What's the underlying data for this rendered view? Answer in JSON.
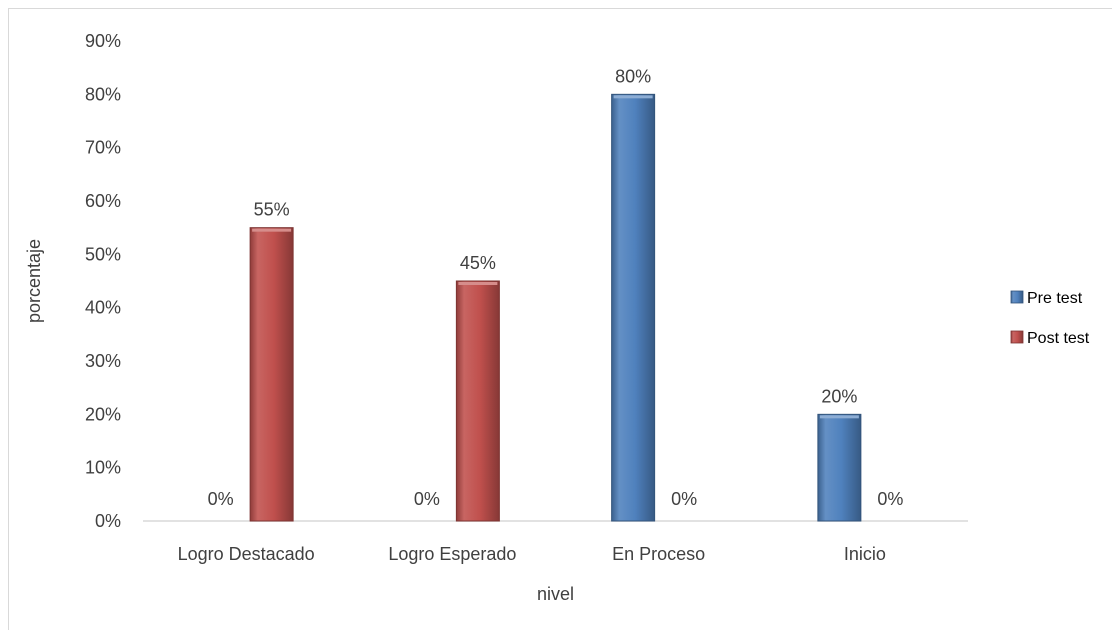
{
  "chart_data": {
    "type": "bar",
    "categories": [
      "Logro Destacado",
      "Logro Esperado",
      "En Proceso",
      "Inicio"
    ],
    "series": [
      {
        "name": "Pre test",
        "values": [
          0,
          0,
          80,
          20
        ],
        "labels": [
          "0%",
          "0%",
          "80%",
          "20%"
        ],
        "color": "#4f81bd"
      },
      {
        "name": "Post test",
        "values": [
          55,
          45,
          0,
          0
        ],
        "labels": [
          "55%",
          "45%",
          "0%",
          "0%"
        ],
        "color": "#c0504d"
      }
    ],
    "xlabel": "nivel",
    "ylabel": "porcentaje",
    "ylim": [
      0,
      90
    ],
    "yticks": [
      "0%",
      "10%",
      "20%",
      "30%",
      "40%",
      "50%",
      "60%",
      "70%",
      "80%",
      "90%"
    ],
    "grid": false,
    "legend": "right"
  }
}
